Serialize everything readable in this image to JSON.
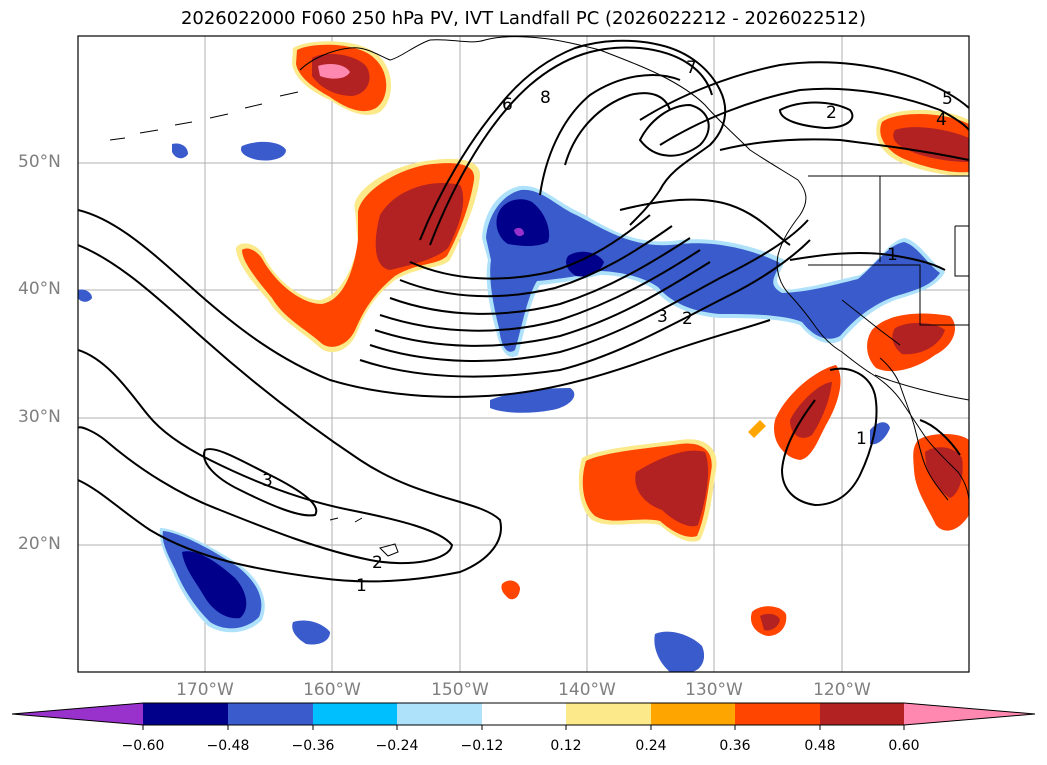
{
  "title": "2026022000 F060 250 hPa PV, IVT Landfall PC (2026022212 - 2026022512)",
  "map": {
    "lat_labels": [
      "50°N",
      "40°N",
      "30°N",
      "20°N"
    ],
    "lon_labels": [
      "170°W",
      "160°W",
      "150°W",
      "140°W",
      "130°W",
      "120°W"
    ],
    "contour_labels": [
      "8",
      "7",
      "6",
      "5",
      "4",
      "3",
      "3",
      "2",
      "2",
      "2",
      "1",
      "1",
      "1"
    ],
    "gridline_color": "#b0b0b0",
    "label_color": "#7f7f7f"
  },
  "colorbar": {
    "ticks": [
      "−0.60",
      "−0.48",
      "−0.36",
      "−0.24",
      "−0.12",
      "0.12",
      "0.24",
      "0.36",
      "0.48",
      "0.60"
    ],
    "colors": [
      "#9932cc",
      "#00008b",
      "#3a5bcc",
      "#00bfff",
      "#aee1fa",
      "#ffffff",
      "#fbe98a",
      "#ffa500",
      "#ff4500",
      "#b22222",
      "#ff88b0"
    ]
  }
}
